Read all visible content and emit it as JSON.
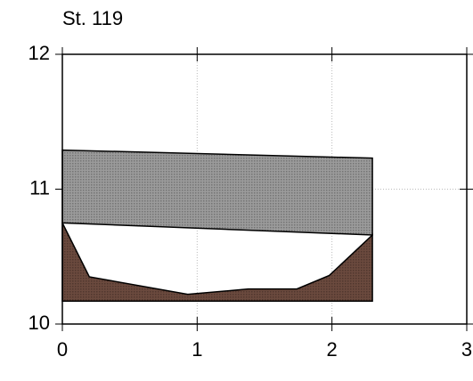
{
  "chart_data": {
    "type": "area",
    "title": "St. 119",
    "xlim": [
      0,
      3
    ],
    "ylim": [
      10,
      12
    ],
    "xticks": [
      0,
      1,
      2,
      3
    ],
    "yticks": [
      10,
      11,
      12
    ],
    "grid": true,
    "series": [
      {
        "color": "#9b9b9b",
        "x": [
          0,
          2.3
        ],
        "upper": [
          11.29,
          11.23
        ],
        "lower": [
          10.75,
          10.66
        ]
      },
      {
        "color": "#6b4a3e",
        "x": [
          0,
          0.2,
          0.93,
          1.38,
          1.74,
          1.98,
          2.3
        ],
        "upper": [
          10.75,
          10.35,
          10.22,
          10.26,
          10.26,
          10.36,
          10.66
        ],
        "lower": [
          10.17,
          10.17,
          10.17,
          10.17,
          10.17,
          10.17,
          10.17
        ]
      }
    ]
  }
}
